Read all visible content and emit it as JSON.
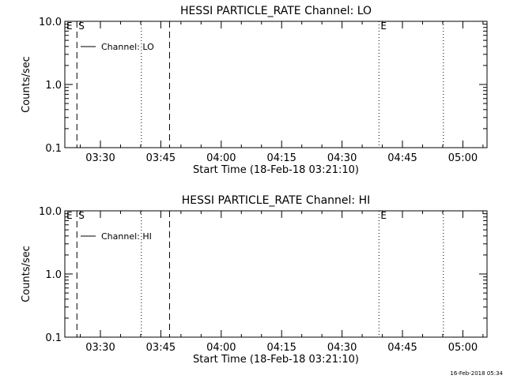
{
  "chart_data": [
    {
      "type": "line",
      "title": "HESSI PARTICLE_RATE Channel: LO",
      "xlabel": "Start Time (18-Feb-18 03:21:10)",
      "ylabel": "Counts/sec",
      "y_scale": "log",
      "ylim": [
        0.1,
        10.0
      ],
      "y_ticks": [
        "0.1",
        "1.0",
        "10.0"
      ],
      "xlim": [
        "03:21:10",
        "05:06:00"
      ],
      "x_ticks": [
        "03:30",
        "03:45",
        "04:00",
        "04:15",
        "04:30",
        "04:45",
        "05:00"
      ],
      "series": [
        {
          "name": "Channel: LO",
          "x": [],
          "values": []
        }
      ],
      "markers": [
        {
          "label": "E",
          "time": "03:21:10",
          "style": "none"
        },
        {
          "label": "S",
          "time": "03:24:10",
          "style": "dashed"
        },
        {
          "label": "",
          "time": "03:40:10",
          "style": "dotted"
        },
        {
          "label": "",
          "time": "03:47:10",
          "style": "dashed"
        },
        {
          "label": "E",
          "time": "04:39:10",
          "style": "dotted"
        },
        {
          "label": "",
          "time": "04:55:10",
          "style": "dotted"
        }
      ]
    },
    {
      "type": "line",
      "title": "HESSI PARTICLE_RATE Channel: HI",
      "xlabel": "Start Time (18-Feb-18 03:21:10)",
      "ylabel": "Counts/sec",
      "y_scale": "log",
      "ylim": [
        0.1,
        10.0
      ],
      "y_ticks": [
        "0.1",
        "1.0",
        "10.0"
      ],
      "xlim": [
        "03:21:10",
        "05:06:00"
      ],
      "x_ticks": [
        "03:30",
        "03:45",
        "04:00",
        "04:15",
        "04:30",
        "04:45",
        "05:00"
      ],
      "series": [
        {
          "name": "Channel: HI",
          "x": [],
          "values": []
        }
      ],
      "markers": [
        {
          "label": "E",
          "time": "03:21:10",
          "style": "none"
        },
        {
          "label": "S",
          "time": "03:24:10",
          "style": "dashed"
        },
        {
          "label": "",
          "time": "03:40:10",
          "style": "dotted"
        },
        {
          "label": "",
          "time": "03:47:10",
          "style": "dashed"
        },
        {
          "label": "E",
          "time": "04:39:10",
          "style": "dotted"
        },
        {
          "label": "",
          "time": "04:55:10",
          "style": "dotted"
        }
      ]
    }
  ],
  "footer": {
    "timestamp": "16-Feb-2018 05:34"
  }
}
